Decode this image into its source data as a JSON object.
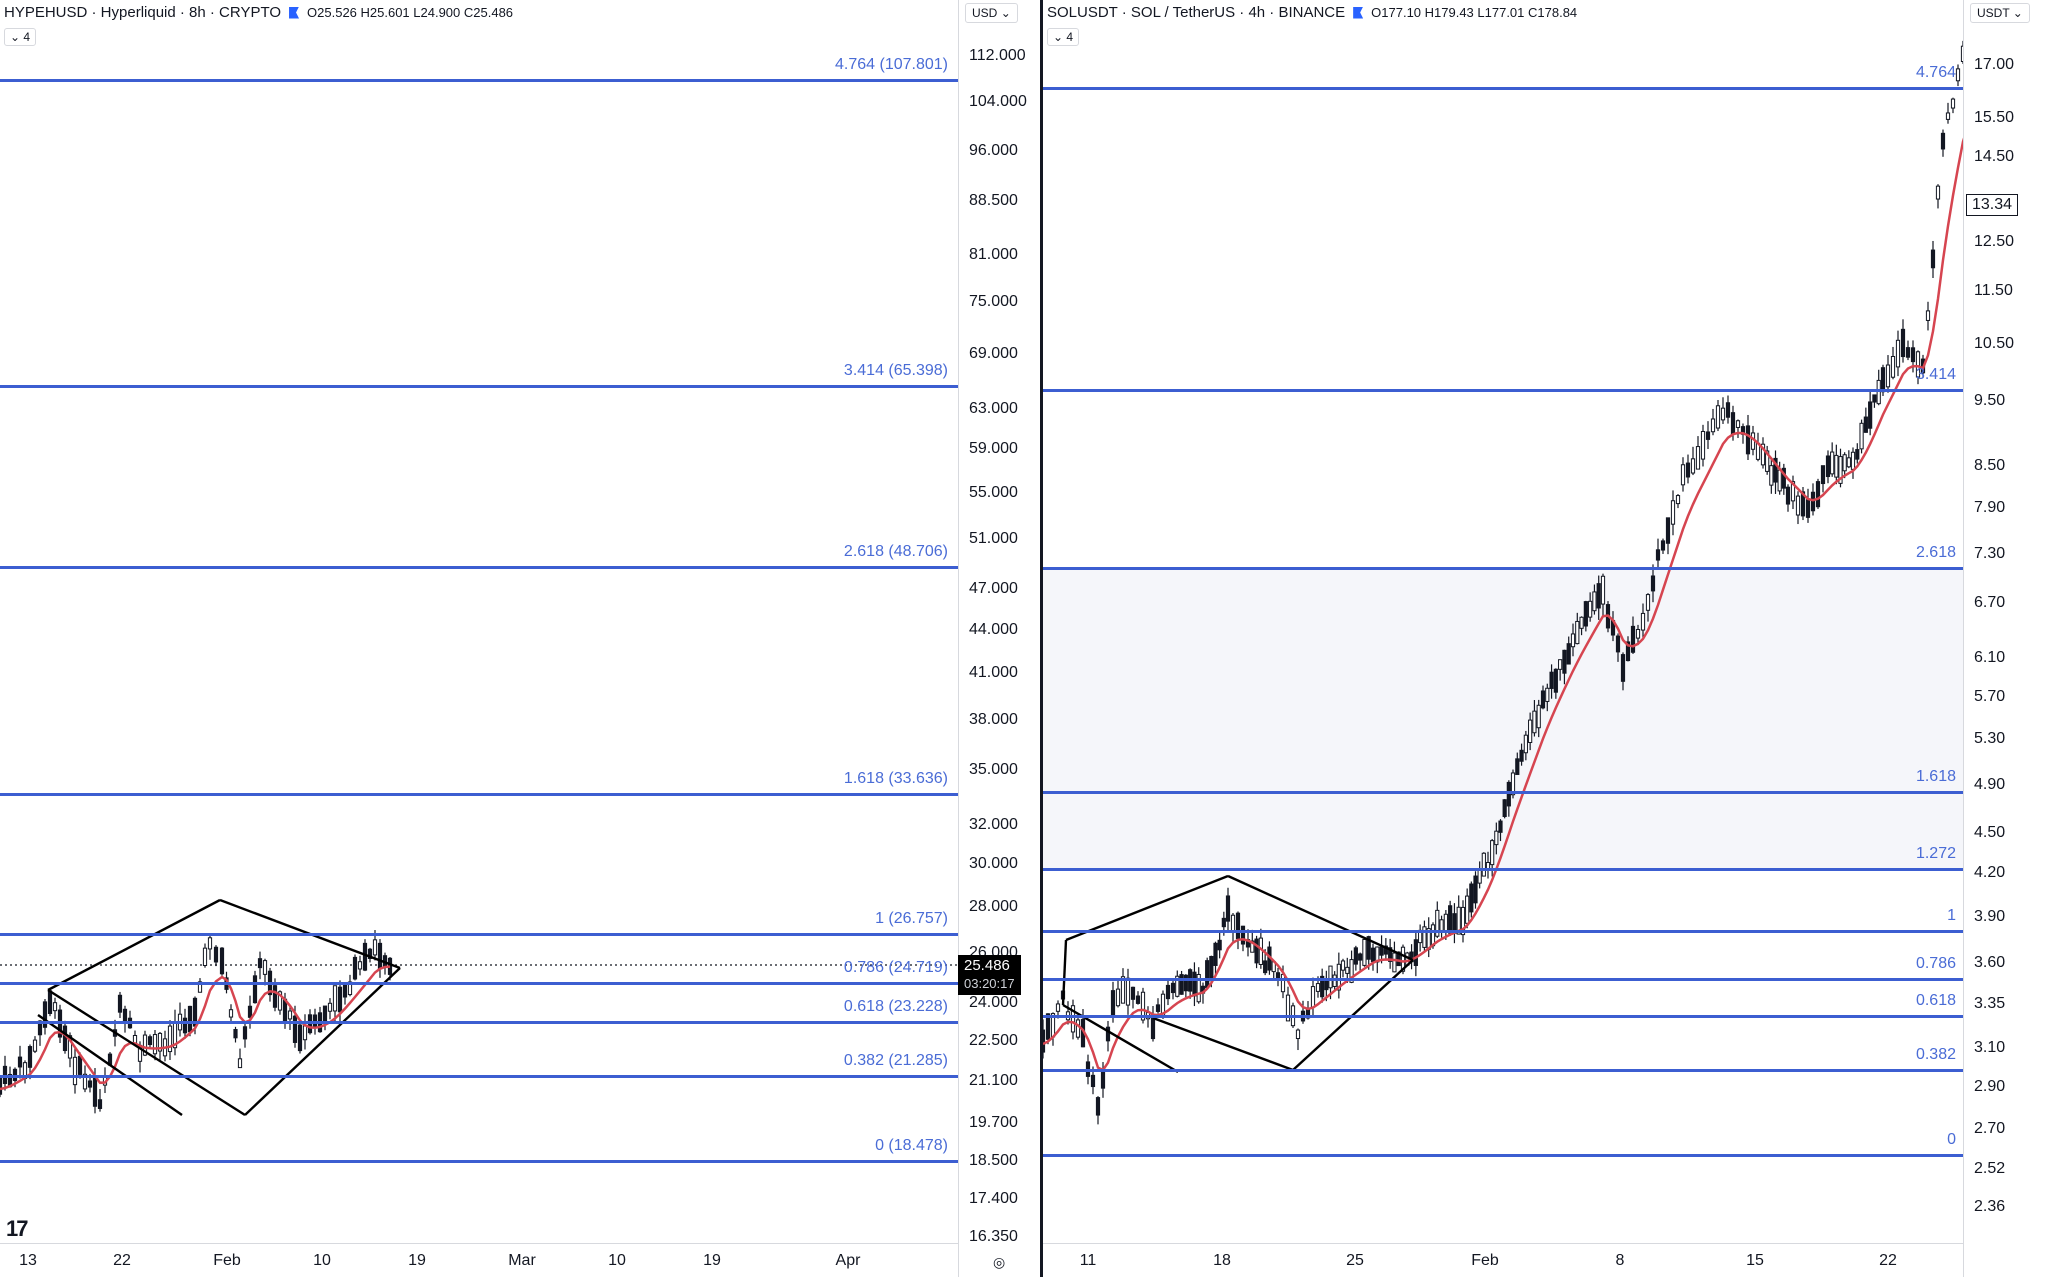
{
  "left_chart": {
    "header": {
      "symbol": "HYPEHUSD · Hyperliquid · 8h · CRYPTO",
      "ohlc": "O25.526  H25.601  L24.900  C25.486"
    },
    "legend_toggle": "⌄ 4",
    "currency": "USD",
    "price_axis": [
      "112.000",
      "104.000",
      "96.000",
      "88.500",
      "81.000",
      "75.000",
      "69.000",
      "63.000",
      "59.000",
      "55.000",
      "51.000",
      "47.000",
      "44.000",
      "41.000",
      "38.000",
      "35.000",
      "32.000",
      "30.000",
      "28.000",
      "26.000",
      "24.000",
      "22.500",
      "21.100",
      "19.700",
      "18.500",
      "17.400",
      "16.350"
    ],
    "time_axis": [
      "13",
      "22",
      "Feb",
      "10",
      "19",
      "Mar",
      "10",
      "19",
      "Apr"
    ],
    "last_price": "25.486",
    "countdown": "03:20:17",
    "fib_levels": [
      {
        "label": "4.764 (107.801)"
      },
      {
        "label": "3.414 (65.398)"
      },
      {
        "label": "2.618 (48.706)"
      },
      {
        "label": "1.618 (33.636)"
      },
      {
        "label": "1 (26.757)"
      },
      {
        "label": "0.786 (24.719)"
      },
      {
        "label": "0.618 (23.228)"
      },
      {
        "label": "0.382 (21.285)"
      },
      {
        "label": "0 (18.478)"
      }
    ]
  },
  "right_chart": {
    "header": {
      "symbol": "SOLUSDT · SOL / TetherUS · 4h · BINANCE",
      "ohlc": "O177.10  H179.43  L177.01  C178.84"
    },
    "legend_toggle": "⌄ 4",
    "currency": "USDT",
    "price_axis": [
      "17.00",
      "15.50",
      "14.50",
      "12.50",
      "11.50",
      "10.50",
      "9.50",
      "8.50",
      "7.90",
      "7.30",
      "6.70",
      "6.10",
      "5.70",
      "5.30",
      "4.90",
      "4.50",
      "4.20",
      "3.90",
      "3.60",
      "3.35",
      "3.10",
      "2.90",
      "2.70",
      "2.52",
      "2.36"
    ],
    "time_axis": [
      "11",
      "18",
      "25",
      "Feb",
      "8",
      "15",
      "22"
    ],
    "current_value": "13.34",
    "fib_levels": [
      {
        "label": "4.764"
      },
      {
        "label": "3.414"
      },
      {
        "label": "2.618"
      },
      {
        "label": "1.618"
      },
      {
        "label": "1.272"
      },
      {
        "label": "1"
      },
      {
        "label": "0.786"
      },
      {
        "label": "0.618"
      },
      {
        "label": "0.382"
      },
      {
        "label": "0"
      }
    ]
  },
  "colors": {
    "fib_line": "#3c5ed1",
    "ma_line": "#d64550",
    "candle": "#131722",
    "pattern": "#000000"
  },
  "icons": {
    "logo": "tradingview-logo",
    "goto": "target-icon"
  }
}
